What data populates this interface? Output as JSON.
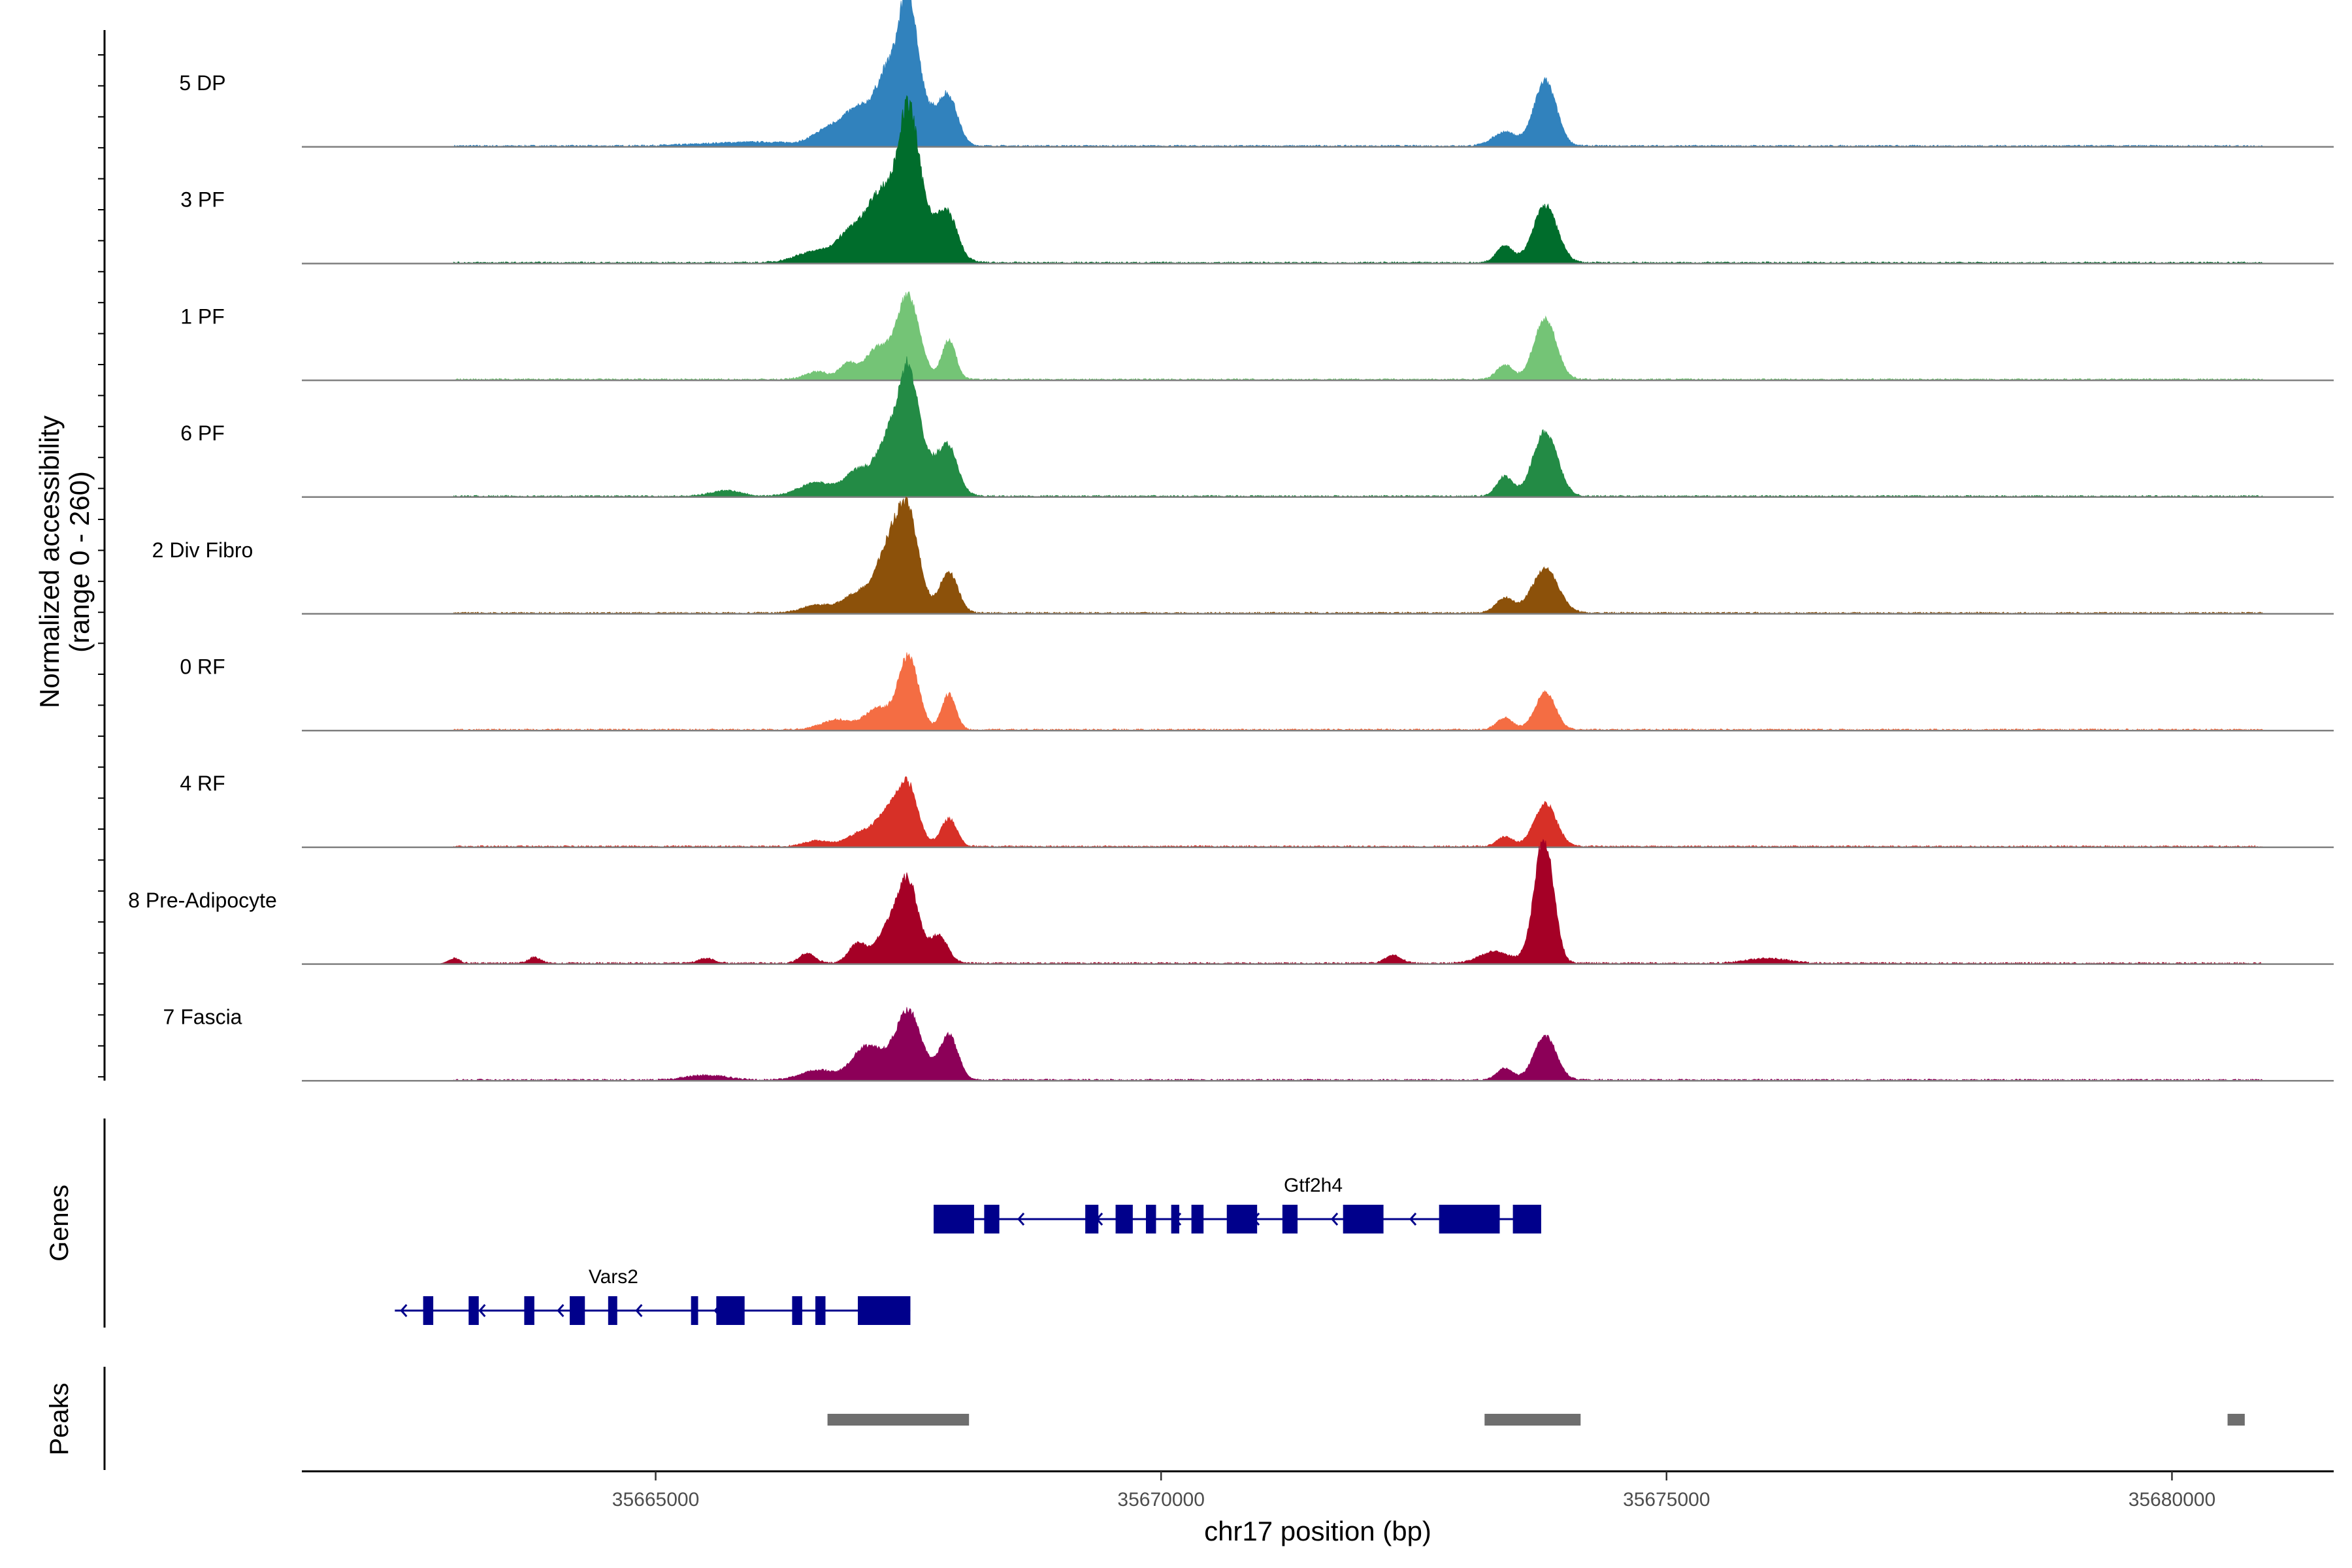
{
  "chart_data": {
    "type": "area",
    "y_axis_title": [
      "Normalized accessibility",
      "(range 0 - 260)"
    ],
    "y_range": [
      0,
      260
    ],
    "x_label": "chr17 position (bp)",
    "x_range": [
      35661500,
      35681600
    ],
    "x_ticks": [
      35665000,
      35670000,
      35675000,
      35680000
    ],
    "x_tick_labels": [
      "35665000",
      "35670000",
      "35675000",
      "35680000"
    ],
    "tracks": [
      {
        "name": "5 DP",
        "color": "#3182bd",
        "peaks": [
          [
            35666000,
            0.04,
            500
          ],
          [
            35666700,
            0.14,
            140
          ],
          [
            35667000,
            0.35,
            150
          ],
          [
            35667300,
            0.55,
            120
          ],
          [
            35667500,
            1.0,
            80
          ],
          [
            35667550,
            0.5,
            200
          ],
          [
            35667900,
            0.42,
            90
          ],
          [
            35673400,
            0.14,
            120
          ],
          [
            35673800,
            0.66,
            110
          ]
        ]
      },
      {
        "name": "3 PF",
        "color": "#006d2c",
        "peaks": [
          [
            35666600,
            0.12,
            200
          ],
          [
            35666900,
            0.2,
            120
          ],
          [
            35667200,
            0.55,
            160
          ],
          [
            35667500,
            0.95,
            90
          ],
          [
            35667550,
            0.6,
            220
          ],
          [
            35667900,
            0.35,
            90
          ],
          [
            35673400,
            0.18,
            80
          ],
          [
            35673800,
            0.58,
            120
          ]
        ]
      },
      {
        "name": "1 PF",
        "color": "#74c476",
        "peaks": [
          [
            35666600,
            0.08,
            120
          ],
          [
            35666900,
            0.15,
            80
          ],
          [
            35667200,
            0.32,
            130
          ],
          [
            35667500,
            0.84,
            110
          ],
          [
            35667900,
            0.4,
            70
          ],
          [
            35673400,
            0.15,
            80
          ],
          [
            35673800,
            0.62,
            110
          ]
        ]
      },
      {
        "name": "6 PF",
        "color": "#238b45",
        "peaks": [
          [
            35665700,
            0.06,
            150
          ],
          [
            35666600,
            0.14,
            180
          ],
          [
            35667000,
            0.25,
            120
          ],
          [
            35667300,
            0.5,
            120
          ],
          [
            35667500,
            0.88,
            90
          ],
          [
            35667600,
            0.4,
            200
          ],
          [
            35667900,
            0.4,
            90
          ],
          [
            35673400,
            0.2,
            80
          ],
          [
            35673800,
            0.66,
            120
          ]
        ]
      },
      {
        "name": "2 Div Fibro",
        "color": "#8c510a",
        "peaks": [
          [
            35666600,
            0.08,
            150
          ],
          [
            35667000,
            0.2,
            140
          ],
          [
            35667300,
            0.6,
            120
          ],
          [
            35667500,
            0.95,
            110
          ],
          [
            35667900,
            0.42,
            90
          ],
          [
            35673400,
            0.15,
            90
          ],
          [
            35673800,
            0.45,
            130
          ]
        ]
      },
      {
        "name": "0 RF",
        "color": "#f46d43",
        "peaks": [
          [
            35666800,
            0.1,
            160
          ],
          [
            35667200,
            0.22,
            120
          ],
          [
            35667500,
            0.74,
            100
          ],
          [
            35667900,
            0.36,
            70
          ],
          [
            35673400,
            0.12,
            80
          ],
          [
            35673800,
            0.38,
            100
          ]
        ]
      },
      {
        "name": "4 RF",
        "color": "#d73027",
        "peaks": [
          [
            35666600,
            0.06,
            130
          ],
          [
            35667000,
            0.12,
            120
          ],
          [
            35667300,
            0.34,
            130
          ],
          [
            35667500,
            0.55,
            100
          ],
          [
            35667900,
            0.28,
            80
          ],
          [
            35673400,
            0.1,
            80
          ],
          [
            35673800,
            0.44,
            110
          ]
        ]
      },
      {
        "name": "8 Pre-Adipocyte",
        "color": "#a50026",
        "peaks": [
          [
            35663000,
            0.05,
            60
          ],
          [
            35663800,
            0.06,
            60
          ],
          [
            35665500,
            0.05,
            80
          ],
          [
            35666500,
            0.1,
            80
          ],
          [
            35667000,
            0.2,
            90
          ],
          [
            35667300,
            0.35,
            110
          ],
          [
            35667500,
            0.8,
            100
          ],
          [
            35667800,
            0.28,
            90
          ],
          [
            35672300,
            0.08,
            80
          ],
          [
            35673300,
            0.12,
            150
          ],
          [
            35673750,
            0.36,
            100
          ],
          [
            35673800,
            0.95,
            90
          ],
          [
            35676000,
            0.05,
            200
          ]
        ]
      },
      {
        "name": "7 Fascia",
        "color": "#8c0058",
        "peaks": [
          [
            35665500,
            0.05,
            200
          ],
          [
            35666600,
            0.1,
            160
          ],
          [
            35667100,
            0.35,
            150
          ],
          [
            35667500,
            0.7,
            130
          ],
          [
            35667900,
            0.46,
            90
          ],
          [
            35673400,
            0.12,
            80
          ],
          [
            35673800,
            0.45,
            110
          ]
        ]
      }
    ],
    "genes_panel_label": "Genes",
    "genes": [
      {
        "name": "Gtf2h4",
        "strand": "-",
        "start": 35667750,
        "end": 35673760,
        "exons": [
          [
            35667750,
            35668150
          ],
          [
            35668250,
            35668400
          ],
          [
            35669250,
            35669380
          ],
          [
            35669550,
            35669720
          ],
          [
            35669850,
            35669950
          ],
          [
            35670100,
            35670180
          ],
          [
            35670300,
            35670420
          ],
          [
            35670650,
            35670950
          ],
          [
            35671200,
            35671350
          ],
          [
            35671800,
            35672200
          ],
          [
            35672750,
            35673350
          ],
          [
            35673480,
            35673760
          ]
        ]
      },
      {
        "name": "Vars2",
        "strand": "-",
        "start": 35662420,
        "end": 35667520,
        "exons": [
          [
            35662700,
            35662800
          ],
          [
            35663150,
            35663250
          ],
          [
            35663700,
            35663800
          ],
          [
            35664150,
            35664300
          ],
          [
            35664530,
            35664620
          ],
          [
            35665350,
            35665420
          ],
          [
            35665600,
            35665880
          ],
          [
            35666350,
            35666450
          ],
          [
            35666580,
            35666680
          ],
          [
            35667000,
            35667520
          ]
        ]
      }
    ],
    "peaks_panel_label": "Peaks",
    "peaks": [
      [
        35666700,
        35668100
      ],
      [
        35673200,
        35674150
      ],
      [
        35680550,
        35680720
      ]
    ]
  }
}
